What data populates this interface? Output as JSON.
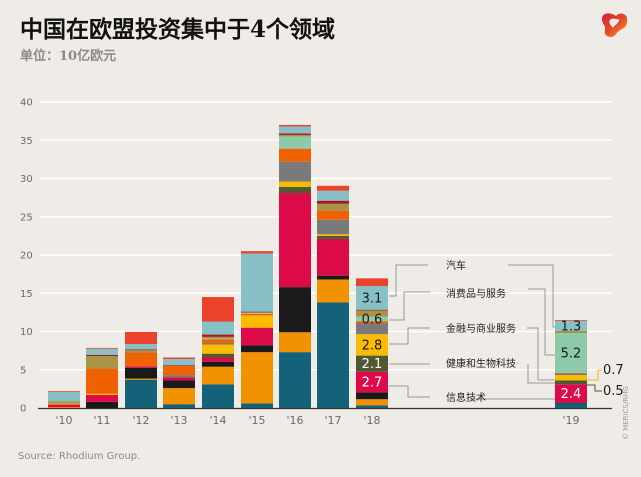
{
  "title": "中国在欧盟投资集中于4个领域",
  "subtitle": "单位：10亿欧元",
  "source": "Source: Rhodium Group.",
  "copyright": "© MERICS/RHG",
  "logo": "rhodium-merics-logo",
  "chart_data": {
    "type": "bar",
    "stacked": true,
    "title": "中国在欧盟投资集中于4个领域",
    "ylabel": "单位：10亿欧元",
    "ylim": [
      0,
      40
    ],
    "yticks": [
      0,
      5,
      10,
      15,
      20,
      25,
      30,
      35,
      40
    ],
    "grid": true,
    "categories": [
      "'10",
      "'11",
      "'12",
      "'13",
      "'14",
      "'15",
      "'16",
      "'17",
      "'18",
      "'19"
    ],
    "colors": {
      "teal": "#14627a",
      "orange": "#f29200",
      "black": "#1a1a1a",
      "crimson": "#dc0a48",
      "darkolive": "#4f5a32",
      "yellow": "#fbbb00",
      "gray": "#7a7a7a",
      "orange2": "#ee6300",
      "green": "#8ccaa9",
      "olive": "#a89346",
      "darkred": "#a5191c",
      "lightblue": "#88c0c8",
      "red": "#e9432c"
    },
    "sector_order": [
      "teal",
      "orange",
      "black",
      "crimson",
      "darkolive",
      "yellow",
      "gray",
      "orange2",
      "green",
      "olive",
      "darkred",
      "lightblue",
      "red"
    ],
    "named_sectors": {
      "lightblue": "汽车",
      "green": "消费品与服务",
      "yellow": "金融与商业服务",
      "darkolive": "健康和生物科技",
      "crimson": "信息技术"
    },
    "values": {
      "'10": {
        "teal": 0,
        "orange": 0.1,
        "black": 0,
        "crimson": 0.35,
        "darkolive": 0,
        "yellow": 0.1,
        "gray": 0,
        "orange2": 0,
        "green": 0,
        "olive": 0.35,
        "darkred": 0,
        "lightblue": 1.2,
        "red": 0.1
      },
      "'11": {
        "teal": 0,
        "orange": 0,
        "black": 0.8,
        "crimson": 0.9,
        "darkolive": 0,
        "yellow": 0.15,
        "gray": 0,
        "orange2": 3.3,
        "green": 0,
        "olive": 1.65,
        "darkred": 0.15,
        "lightblue": 0.8,
        "red": 0.1
      },
      "'12": {
        "teal": 3.7,
        "orange": 0.15,
        "black": 1.4,
        "crimson": 0.2,
        "darkolive": 0,
        "yellow": 0,
        "gray": 0,
        "orange2": 1.8,
        "green": 0,
        "olive": 0.3,
        "darkred": 0.1,
        "lightblue": 0.7,
        "red": 1.6
      },
      "'13": {
        "teal": 0.5,
        "orange": 2.1,
        "black": 1.0,
        "crimson": 0.4,
        "darkolive": 0,
        "yellow": 0,
        "gray": 0.3,
        "orange2": 1.2,
        "green": 0,
        "olive": 0,
        "darkred": 0.1,
        "lightblue": 0.8,
        "red": 0.2
      },
      "'14": {
        "teal": 3.1,
        "orange": 2.3,
        "black": 0.65,
        "crimson": 0.55,
        "darkolive": 0.5,
        "yellow": 1.2,
        "gray": 0.2,
        "orange2": 0.5,
        "green": 0.1,
        "olive": 0.2,
        "darkred": 0.3,
        "lightblue": 1.7,
        "red": 3.2
      },
      "'15": {
        "teal": 0.6,
        "orange": 6.7,
        "black": 0.9,
        "crimson": 2.3,
        "darkolive": 0,
        "yellow": 1.6,
        "gray": 0,
        "orange2": 0.2,
        "green": 0.1,
        "olive": 0.1,
        "darkred": 0.1,
        "lightblue": 7.6,
        "red": 0.3
      },
      "'16": {
        "teal": 7.3,
        "orange": 2.6,
        "black": 5.9,
        "crimson": 12.3,
        "darkolive": 0.8,
        "yellow": 0.7,
        "gray": 2.6,
        "orange2": 1.7,
        "green": 1.6,
        "olive": 0.2,
        "darkred": 0.2,
        "lightblue": 0.9,
        "red": 0.2
      },
      "'17": {
        "teal": 13.8,
        "orange": 3.0,
        "black": 0.5,
        "crimson": 4.8,
        "darkolive": 0.4,
        "yellow": 0.2,
        "gray": 1.9,
        "orange2": 1.2,
        "green": 0,
        "olive": 0.9,
        "darkred": 0.4,
        "lightblue": 1.3,
        "red": 0.65
      },
      "'18": {
        "teal": 0.35,
        "orange": 0.8,
        "black": 0.9,
        "crimson": 2.7,
        "darkolive": 2.1,
        "yellow": 2.8,
        "gray": 1.4,
        "orange2": 0.3,
        "green": 0.6,
        "olive": 0.8,
        "darkred": 0.1,
        "lightblue": 3.1,
        "red": 1.0
      },
      "'19": {
        "teal": 0.6,
        "orange": 0,
        "black": 0.1,
        "crimson": 2.4,
        "darkolive": 0.5,
        "yellow": 0.7,
        "gray": 0.2,
        "orange2": 0.1,
        "green": 5.2,
        "olive": 0.3,
        "darkred": 0,
        "lightblue": 1.3,
        "red": 0.1
      }
    },
    "data_labels": [
      {
        "category": "'18",
        "sector": "lightblue",
        "text": "3.1",
        "color": "#1a1a1a"
      },
      {
        "category": "'18",
        "sector": "green",
        "text": "0.6",
        "color": "#1a1a1a"
      },
      {
        "category": "'18",
        "sector": "yellow",
        "text": "2.8",
        "color": "#1a1a1a"
      },
      {
        "category": "'18",
        "sector": "darkolive",
        "text": "2.1",
        "color": "#ffffff"
      },
      {
        "category": "'18",
        "sector": "crimson",
        "text": "2.7",
        "color": "#ffffff"
      },
      {
        "category": "'19",
        "sector": "lightblue",
        "text": "1.3",
        "color": "#1a1a1a"
      },
      {
        "category": "'19",
        "sector": "green",
        "text": "5.2",
        "color": "#1a1a1a"
      },
      {
        "category": "'19",
        "sector": "crimson",
        "text": "2.4",
        "color": "#ffffff"
      },
      {
        "category": "'19",
        "sector": "yellow",
        "text": "0.7",
        "color": "#1a1a1a",
        "outside": true
      },
      {
        "category": "'19",
        "sector": "darkolive",
        "text": "0.5",
        "color": "#1a1a1a",
        "outside": true
      }
    ]
  }
}
